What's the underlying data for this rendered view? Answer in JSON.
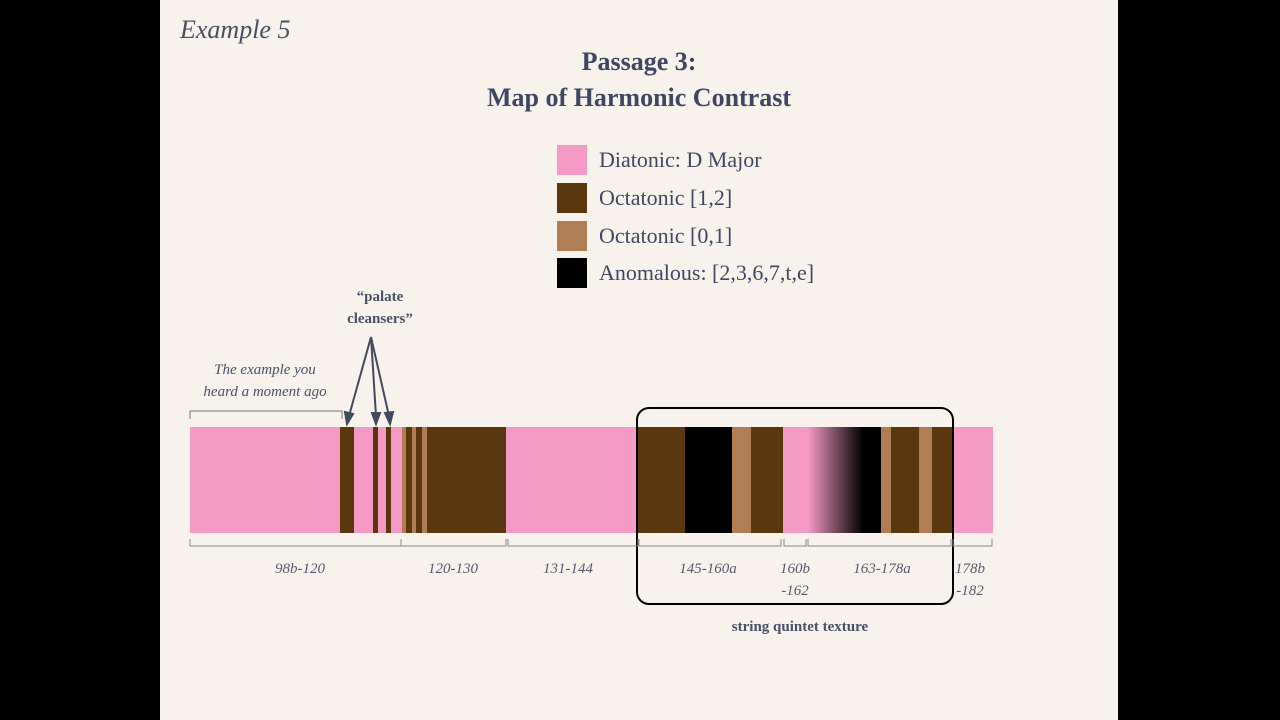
{
  "slide": {
    "example_label": "Example 5",
    "title_line1": "Passage 3:",
    "title_line2": "Map of Harmonic Contrast"
  },
  "legend": [
    {
      "label": "Diatonic: D Major",
      "color": "#f49ac4"
    },
    {
      "label": "Octatonic [1,2]",
      "color": "#5b3710"
    },
    {
      "label": "Octatonic [0,1]",
      "color": "#b07d55"
    },
    {
      "label": "Anomalous: [2,3,6,7,t,e]",
      "color": "#000000"
    }
  ],
  "annotations": {
    "palate_line1": "“palate",
    "palate_line2": "cleansers”",
    "example_line1": "The example you",
    "example_line2": "heard a moment ago",
    "quintet": "string quintet texture"
  },
  "ranges": [
    {
      "line1": "98b-120",
      "line2": ""
    },
    {
      "line1": "120-130",
      "line2": ""
    },
    {
      "line1": "131-144",
      "line2": ""
    },
    {
      "line1": "145-160a",
      "line2": ""
    },
    {
      "line1": "160b",
      "line2": "-162"
    },
    {
      "line1": "163-178a",
      "line2": ""
    },
    {
      "line1": "178b",
      "line2": "-182"
    }
  ]
}
